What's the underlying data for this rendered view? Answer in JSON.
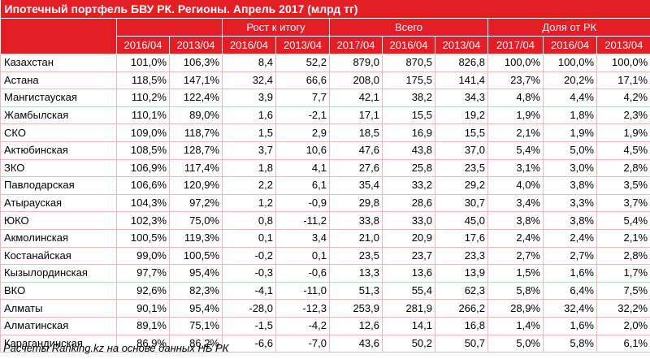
{
  "title": "Ипотечный портфель БВУ РК. Регионы. Апрель 2017 (млрд тг)",
  "groups": [
    {
      "label": "Рост к итогу"
    },
    {
      "label": "Всего"
    },
    {
      "label": "Доля от РК"
    }
  ],
  "subheaders": [
    "2016/04",
    "2013/04",
    "2016/04",
    "2013/04",
    "2017/04",
    "2016/04",
    "2013/04",
    "2017/04",
    "2016/04",
    "2013/04"
  ],
  "rows": [
    {
      "region": "Казахстан",
      "values": [
        "101,0%",
        "106,3%",
        "8,4",
        "52,2",
        "879,0",
        "870,5",
        "826,8",
        "100,0%",
        "100,0%",
        "100,0%"
      ]
    },
    {
      "region": "Астана",
      "values": [
        "118,5%",
        "147,1%",
        "32,4",
        "66,6",
        "208,0",
        "175,5",
        "141,4",
        "23,7%",
        "20,2%",
        "17,1%"
      ]
    },
    {
      "region": "Мангистауская",
      "values": [
        "110,2%",
        "122,4%",
        "3,9",
        "7,7",
        "42,1",
        "38,2",
        "34,3",
        "4,8%",
        "4,4%",
        "4,2%"
      ]
    },
    {
      "region": "Жамбылская",
      "values": [
        "110,1%",
        "89,0%",
        "1,6",
        "-2,1",
        "17,1",
        "15,5",
        "19,2",
        "1,9%",
        "1,8%",
        "2,3%"
      ]
    },
    {
      "region": "СКО",
      "values": [
        "109,0%",
        "118,7%",
        "1,5",
        "2,9",
        "18,5",
        "16,9",
        "15,5",
        "2,1%",
        "1,9%",
        "1,9%"
      ]
    },
    {
      "region": "Актюбинская",
      "values": [
        "108,5%",
        "128,7%",
        "3,7",
        "10,6",
        "47,6",
        "43,8",
        "37,0",
        "5,4%",
        "5,0%",
        "4,5%"
      ]
    },
    {
      "region": "ЗКО",
      "values": [
        "106,9%",
        "117,4%",
        "1,8",
        "4,1",
        "27,6",
        "25,8",
        "23,5",
        "3,1%",
        "3,0%",
        "2,8%"
      ]
    },
    {
      "region": "Павлодарская",
      "values": [
        "106,6%",
        "120,9%",
        "2,2",
        "6,1",
        "35,4",
        "33,2",
        "29,2",
        "4,0%",
        "3,8%",
        "3,5%"
      ]
    },
    {
      "region": "Атырауская",
      "values": [
        "104,3%",
        "97,2%",
        "1,2",
        "-0,9",
        "29,8",
        "28,6",
        "30,7",
        "3,4%",
        "3,3%",
        "3,7%"
      ]
    },
    {
      "region": "ЮКО",
      "values": [
        "102,3%",
        "75,0%",
        "0,8",
        "-11,2",
        "33,8",
        "33,0",
        "45,0",
        "3,8%",
        "3,8%",
        "5,4%"
      ]
    },
    {
      "region": "Акмолинская",
      "values": [
        "100,5%",
        "119,3%",
        "0,1",
        "3,4",
        "21,0",
        "20,9",
        "17,6",
        "2,4%",
        "2,4%",
        "2,1%"
      ]
    },
    {
      "region": "Костанайская",
      "values": [
        "99,0%",
        "100,5%",
        "-0,2",
        "0,1",
        "23,5",
        "23,7",
        "23,3",
        "2,7%",
        "2,7%",
        "2,8%"
      ]
    },
    {
      "region": "Кызылординская",
      "values": [
        "97,7%",
        "95,4%",
        "-0,3",
        "-0,6",
        "13,3",
        "13,6",
        "13,9",
        "1,5%",
        "1,6%",
        "1,7%"
      ]
    },
    {
      "region": "ВКО",
      "values": [
        "92,6%",
        "82,3%",
        "-4,1",
        "-11,0",
        "51,3",
        "55,4",
        "62,3",
        "5,8%",
        "6,4%",
        "7,5%"
      ]
    },
    {
      "region": "Алматы",
      "values": [
        "90,1%",
        "95,4%",
        "-28,0",
        "-12,3",
        "253,9",
        "281,9",
        "266,2",
        "28,9%",
        "32,4%",
        "32,2%"
      ]
    },
    {
      "region": "Алматинская",
      "values": [
        "89,1%",
        "75,1%",
        "-1,5",
        "-4,2",
        "12,6",
        "14,1",
        "16,8",
        "1,4%",
        "1,6%",
        "2,0%"
      ]
    },
    {
      "region": "Карагандинская",
      "values": [
        "86,9%",
        "86,2%",
        "-6,6",
        "-7,0",
        "43,6",
        "50,2",
        "50,7",
        "5,0%",
        "5,8%",
        "6,1%"
      ]
    }
  ],
  "footer": "Расчеты Ranking.kz на основе данных НБ РК"
}
